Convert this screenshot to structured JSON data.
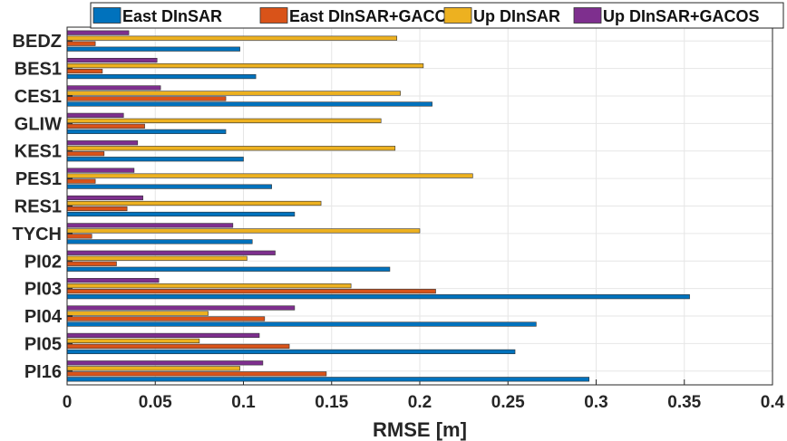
{
  "chart_data": {
    "type": "bar",
    "orientation": "horizontal",
    "categories": [
      "BEDZ",
      "BES1",
      "CES1",
      "GLIW",
      "KES1",
      "PES1",
      "RES1",
      "TYCH",
      "PI02",
      "PI03",
      "PI04",
      "PI05",
      "PI16"
    ],
    "series": [
      {
        "name": "East DInSAR",
        "color": "#0072BD",
        "values": [
          0.098,
          0.107,
          0.207,
          0.09,
          0.1,
          0.116,
          0.129,
          0.105,
          0.183,
          0.353,
          0.266,
          0.254,
          0.296
        ]
      },
      {
        "name": "East DInSAR+GACOS",
        "color": "#D95319",
        "values": [
          0.016,
          0.02,
          0.09,
          0.044,
          0.021,
          0.016,
          0.034,
          0.014,
          0.028,
          0.209,
          0.112,
          0.126,
          0.147
        ]
      },
      {
        "name": "Up DInSAR",
        "color": "#EDB120",
        "values": [
          0.187,
          0.202,
          0.189,
          0.178,
          0.186,
          0.23,
          0.144,
          0.2,
          0.102,
          0.161,
          0.08,
          0.075,
          0.098
        ]
      },
      {
        "name": "Up DInSAR+GACOS",
        "color": "#7E2F8E",
        "values": [
          0.035,
          0.051,
          0.053,
          0.032,
          0.04,
          0.038,
          0.043,
          0.094,
          0.118,
          0.052,
          0.129,
          0.109,
          0.111
        ]
      }
    ],
    "xlabel": "RMSE [m]",
    "xlim": [
      0,
      0.4
    ],
    "xticks": [
      "0",
      "0.05",
      "0.1",
      "0.15",
      "0.2",
      "0.25",
      "0.3",
      "0.35",
      "0.4"
    ],
    "grid": true,
    "legend": "top, horizontal"
  }
}
